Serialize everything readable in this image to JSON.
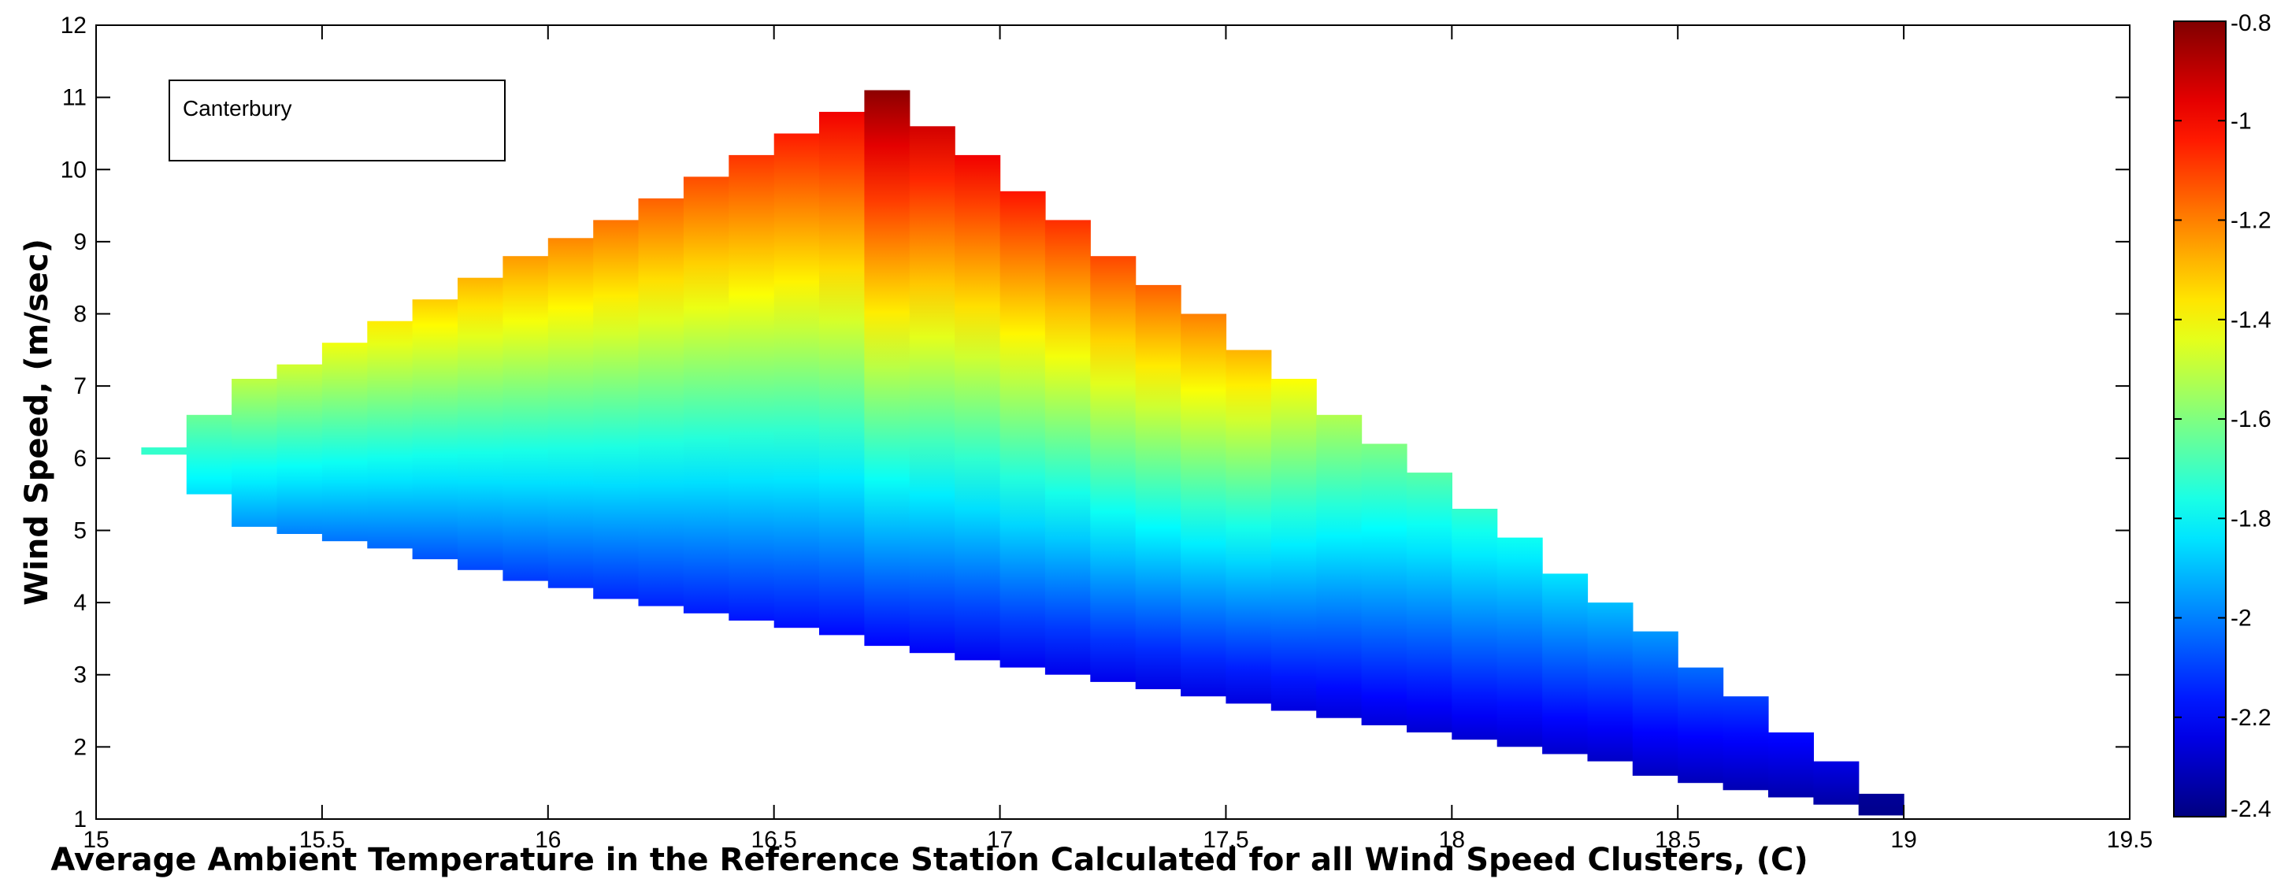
{
  "chart_data": {
    "type": "heatmap",
    "title": "",
    "xlabel": "Average Ambient Temperature in the Reference Station Calculated for all Wind Speed Clusters, (C)",
    "ylabel": "Wind Speed, (m/sec)",
    "legend_box": {
      "text": "Canterbury",
      "placement": "top-left"
    },
    "xlim": [
      15,
      19.5
    ],
    "ylim": [
      1,
      12
    ],
    "xticks": [
      "15",
      "15.5",
      "16",
      "16.5",
      "17",
      "17.5",
      "18",
      "18.5",
      "19",
      "19.5"
    ],
    "yticks": [
      "1",
      "2",
      "3",
      "4",
      "5",
      "6",
      "7",
      "8",
      "9",
      "10",
      "11",
      "12"
    ],
    "colorbar": {
      "colormap": "jet",
      "range": [
        -2.4,
        -0.8
      ],
      "ticks": [
        "-0.8",
        "-1",
        "-1.2",
        "-1.4",
        "-1.6",
        "-1.8",
        "-2",
        "-2.2",
        "-2.4"
      ]
    },
    "column_width": 0.1,
    "columns": [
      {
        "x": 15.1,
        "y_low": 6.05,
        "y_high": 6.15,
        "c_low": -1.72,
        "c_high": -1.72
      },
      {
        "x": 15.2,
        "y_low": 5.5,
        "y_high": 6.6,
        "c_low": -1.85,
        "c_high": -1.63
      },
      {
        "x": 15.3,
        "y_low": 5.05,
        "y_high": 7.1,
        "c_low": -1.97,
        "c_high": -1.5
      },
      {
        "x": 15.4,
        "y_low": 4.95,
        "y_high": 7.3,
        "c_low": -2.0,
        "c_high": -1.47
      },
      {
        "x": 15.5,
        "y_low": 4.85,
        "y_high": 7.6,
        "c_low": -2.02,
        "c_high": -1.42
      },
      {
        "x": 15.6,
        "y_low": 4.75,
        "y_high": 7.9,
        "c_low": -2.04,
        "c_high": -1.37
      },
      {
        "x": 15.7,
        "y_low": 4.6,
        "y_high": 8.2,
        "c_low": -2.07,
        "c_high": -1.32
      },
      {
        "x": 15.8,
        "y_low": 4.45,
        "y_high": 8.5,
        "c_low": -2.09,
        "c_high": -1.28
      },
      {
        "x": 15.9,
        "y_low": 4.3,
        "y_high": 8.8,
        "c_low": -2.11,
        "c_high": -1.24
      },
      {
        "x": 16.0,
        "y_low": 4.2,
        "y_high": 9.05,
        "c_low": -2.12,
        "c_high": -1.21
      },
      {
        "x": 16.1,
        "y_low": 4.05,
        "y_high": 9.3,
        "c_low": -2.14,
        "c_high": -1.18
      },
      {
        "x": 16.2,
        "y_low": 3.95,
        "y_high": 9.6,
        "c_low": -2.15,
        "c_high": -1.15
      },
      {
        "x": 16.3,
        "y_low": 3.85,
        "y_high": 9.9,
        "c_low": -2.16,
        "c_high": -1.12
      },
      {
        "x": 16.4,
        "y_low": 3.75,
        "y_high": 10.2,
        "c_low": -2.17,
        "c_high": -1.08
      },
      {
        "x": 16.5,
        "y_low": 3.65,
        "y_high": 10.5,
        "c_low": -2.18,
        "c_high": -1.04
      },
      {
        "x": 16.6,
        "y_low": 3.55,
        "y_high": 10.8,
        "c_low": -2.19,
        "c_high": -0.98
      },
      {
        "x": 16.7,
        "y_low": 3.4,
        "y_high": 11.1,
        "c_low": -2.2,
        "c_high": -0.82
      },
      {
        "x": 16.8,
        "y_low": 3.3,
        "y_high": 10.6,
        "c_low": -2.21,
        "c_high": -0.93
      },
      {
        "x": 16.9,
        "y_low": 3.2,
        "y_high": 10.2,
        "c_low": -2.22,
        "c_high": -0.98
      },
      {
        "x": 17.0,
        "y_low": 3.1,
        "y_high": 9.7,
        "c_low": -2.22,
        "c_high": -1.03
      },
      {
        "x": 17.1,
        "y_low": 3.0,
        "y_high": 9.3,
        "c_low": -2.23,
        "c_high": -1.07
      },
      {
        "x": 17.2,
        "y_low": 2.9,
        "y_high": 8.8,
        "c_low": -2.23,
        "c_high": -1.11
      },
      {
        "x": 17.3,
        "y_low": 2.8,
        "y_high": 8.4,
        "c_low": -2.24,
        "c_high": -1.15
      },
      {
        "x": 17.4,
        "y_low": 2.7,
        "y_high": 8.0,
        "c_low": -2.24,
        "c_high": -1.2
      },
      {
        "x": 17.5,
        "y_low": 2.6,
        "y_high": 7.5,
        "c_low": -2.25,
        "c_high": -1.28
      },
      {
        "x": 17.6,
        "y_low": 2.5,
        "y_high": 7.1,
        "c_low": -2.25,
        "c_high": -1.4
      },
      {
        "x": 17.7,
        "y_low": 2.4,
        "y_high": 6.6,
        "c_low": -2.26,
        "c_high": -1.52
      },
      {
        "x": 17.8,
        "y_low": 2.3,
        "y_high": 6.2,
        "c_low": -2.26,
        "c_high": -1.6
      },
      {
        "x": 17.9,
        "y_low": 2.2,
        "y_high": 5.8,
        "c_low": -2.27,
        "c_high": -1.66
      },
      {
        "x": 18.0,
        "y_low": 2.1,
        "y_high": 5.3,
        "c_low": -2.27,
        "c_high": -1.72
      },
      {
        "x": 18.1,
        "y_low": 2.0,
        "y_high": 4.9,
        "c_low": -2.28,
        "c_high": -1.78
      },
      {
        "x": 18.2,
        "y_low": 1.9,
        "y_high": 4.4,
        "c_low": -2.28,
        "c_high": -1.84
      },
      {
        "x": 18.3,
        "y_low": 1.8,
        "y_high": 4.0,
        "c_low": -2.29,
        "c_high": -1.9
      },
      {
        "x": 18.4,
        "y_low": 1.6,
        "y_high": 3.6,
        "c_low": -2.3,
        "c_high": -1.96
      },
      {
        "x": 18.5,
        "y_low": 1.5,
        "y_high": 3.1,
        "c_low": -2.31,
        "c_high": -2.03
      },
      {
        "x": 18.6,
        "y_low": 1.4,
        "y_high": 2.7,
        "c_low": -2.32,
        "c_high": -2.1
      },
      {
        "x": 18.7,
        "y_low": 1.3,
        "y_high": 2.2,
        "c_low": -2.33,
        "c_high": -2.18
      },
      {
        "x": 18.8,
        "y_low": 1.2,
        "y_high": 1.8,
        "c_low": -2.34,
        "c_high": -2.24
      },
      {
        "x": 18.9,
        "y_low": 1.05,
        "y_high": 1.35,
        "c_low": -2.38,
        "c_high": -2.36
      }
    ]
  }
}
